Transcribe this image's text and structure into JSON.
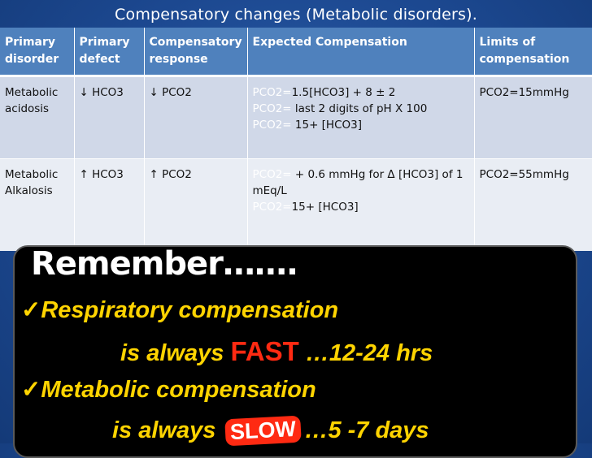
{
  "slide": {
    "title": "Compensatory changes (Metabolic disorders)."
  },
  "table": {
    "headers": [
      "Primary disorder",
      "Primary defect",
      "Compensatory response",
      "Expected Compensation",
      "Limits of compensation"
    ],
    "rows": [
      {
        "disorder": "Metabolic acidosis",
        "defect": "↓ HCO3",
        "response": "↓ PCO2",
        "expected": [
          {
            "label": "PCO2=",
            "value": "1.5[HCO3] + 8 ± 2"
          },
          {
            "label": "PCO2=",
            "value": " last 2 digits of pH X 100"
          },
          {
            "label": "PCO2=",
            "value": " 15+ [HCO3]"
          }
        ],
        "limits": "PCO2=15mmHg"
      },
      {
        "disorder": "Metabolic Alkalosis",
        "defect": "↑ HCO3",
        "response": "↑ PCO2",
        "expected": [
          {
            "label": "PCO2=",
            "value": " + 0.6 mmHg for Δ [HCO3] of 1 mEq/L"
          },
          {
            "label": "PCO2=",
            "value": "15+ [HCO3]"
          }
        ],
        "limits": "PCO2=55mmHg"
      }
    ]
  },
  "remember": {
    "heading": "Remember…….",
    "check_glyph": "✓",
    "line1": "Respiratory compensation",
    "line2_prefix": "is always ",
    "line2_highlight": "FAST",
    "line2_suffix": " …12-24 hrs",
    "line3": "Metabolic compensation",
    "line4_prefix": "is always ",
    "line4_highlight": "SLOW",
    "line4_suffix": "…5 -7 days"
  },
  "colors": {
    "background": "#1c4890",
    "header_fill": "#4f81bd",
    "row_fill_1": "#d0d8e8",
    "row_fill_2": "#e9edf4",
    "highlight_yellow": "#ffd400",
    "highlight_red": "#ff2a12"
  }
}
